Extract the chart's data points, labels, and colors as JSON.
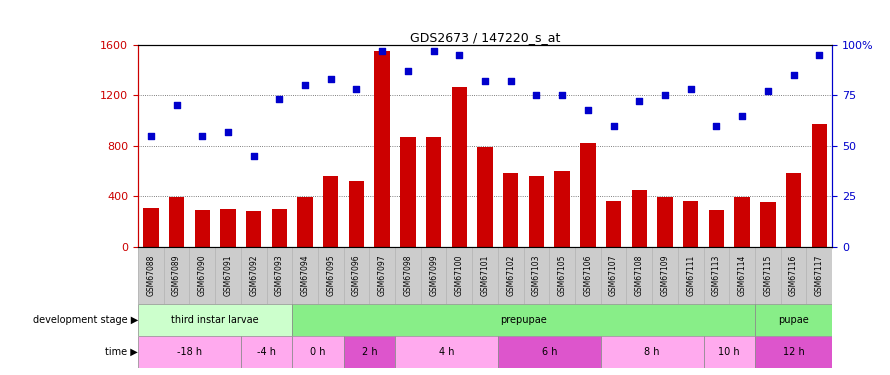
{
  "title": "GDS2673 / 147220_s_at",
  "samples": [
    "GSM67088",
    "GSM67089",
    "GSM67090",
    "GSM67091",
    "GSM67092",
    "GSM67093",
    "GSM67094",
    "GSM67095",
    "GSM67096",
    "GSM67097",
    "GSM67098",
    "GSM67099",
    "GSM67100",
    "GSM67101",
    "GSM67102",
    "GSM67103",
    "GSM67105",
    "GSM67106",
    "GSM67107",
    "GSM67108",
    "GSM67109",
    "GSM67111",
    "GSM67113",
    "GSM67114",
    "GSM67115",
    "GSM67116",
    "GSM67117"
  ],
  "count": [
    310,
    390,
    290,
    300,
    285,
    300,
    390,
    560,
    520,
    1550,
    870,
    870,
    1270,
    790,
    580,
    560,
    600,
    820,
    360,
    450,
    390,
    360,
    290,
    395,
    350,
    580,
    975
  ],
  "percentile": [
    55,
    70,
    55,
    57,
    45,
    73,
    80,
    83,
    78,
    97,
    87,
    97,
    95,
    82,
    82,
    75,
    75,
    68,
    60,
    72,
    75,
    78,
    60,
    65,
    77,
    85,
    95
  ],
  "bar_color": "#cc0000",
  "dot_color": "#0000cc",
  "ylim_left": [
    0,
    1600
  ],
  "ylim_right": [
    0,
    100
  ],
  "yticks_left": [
    0,
    400,
    800,
    1200,
    1600
  ],
  "yticks_right": [
    0,
    25,
    50,
    75,
    100
  ],
  "yticklabels_right": [
    "0",
    "25",
    "50",
    "75",
    "100%"
  ],
  "background_color": "#ffffff",
  "grid_color": "#555555",
  "left_axis_color": "#cc0000",
  "right_axis_color": "#0000cc",
  "xtick_bg_color": "#cccccc",
  "dev_stages": [
    {
      "label": "third instar larvae",
      "start": 0,
      "end": 6,
      "color": "#ccffcc"
    },
    {
      "label": "prepupae",
      "start": 6,
      "end": 24,
      "color": "#88ee88"
    },
    {
      "label": "pupae",
      "start": 24,
      "end": 27,
      "color": "#88ee88"
    }
  ],
  "time_groups": [
    {
      "label": "-18 h",
      "start": 0,
      "end": 4,
      "color": "#ffaaee"
    },
    {
      "label": "-4 h",
      "start": 4,
      "end": 6,
      "color": "#ffaaee"
    },
    {
      "label": "0 h",
      "start": 6,
      "end": 8,
      "color": "#ffaaee"
    },
    {
      "label": "2 h",
      "start": 8,
      "end": 10,
      "color": "#dd55cc"
    },
    {
      "label": "4 h",
      "start": 10,
      "end": 14,
      "color": "#ffaaee"
    },
    {
      "label": "6 h",
      "start": 14,
      "end": 18,
      "color": "#dd55cc"
    },
    {
      "label": "8 h",
      "start": 18,
      "end": 22,
      "color": "#ffaaee"
    },
    {
      "label": "10 h",
      "start": 22,
      "end": 24,
      "color": "#ffaaee"
    },
    {
      "label": "12 h",
      "start": 24,
      "end": 27,
      "color": "#dd55cc"
    }
  ]
}
